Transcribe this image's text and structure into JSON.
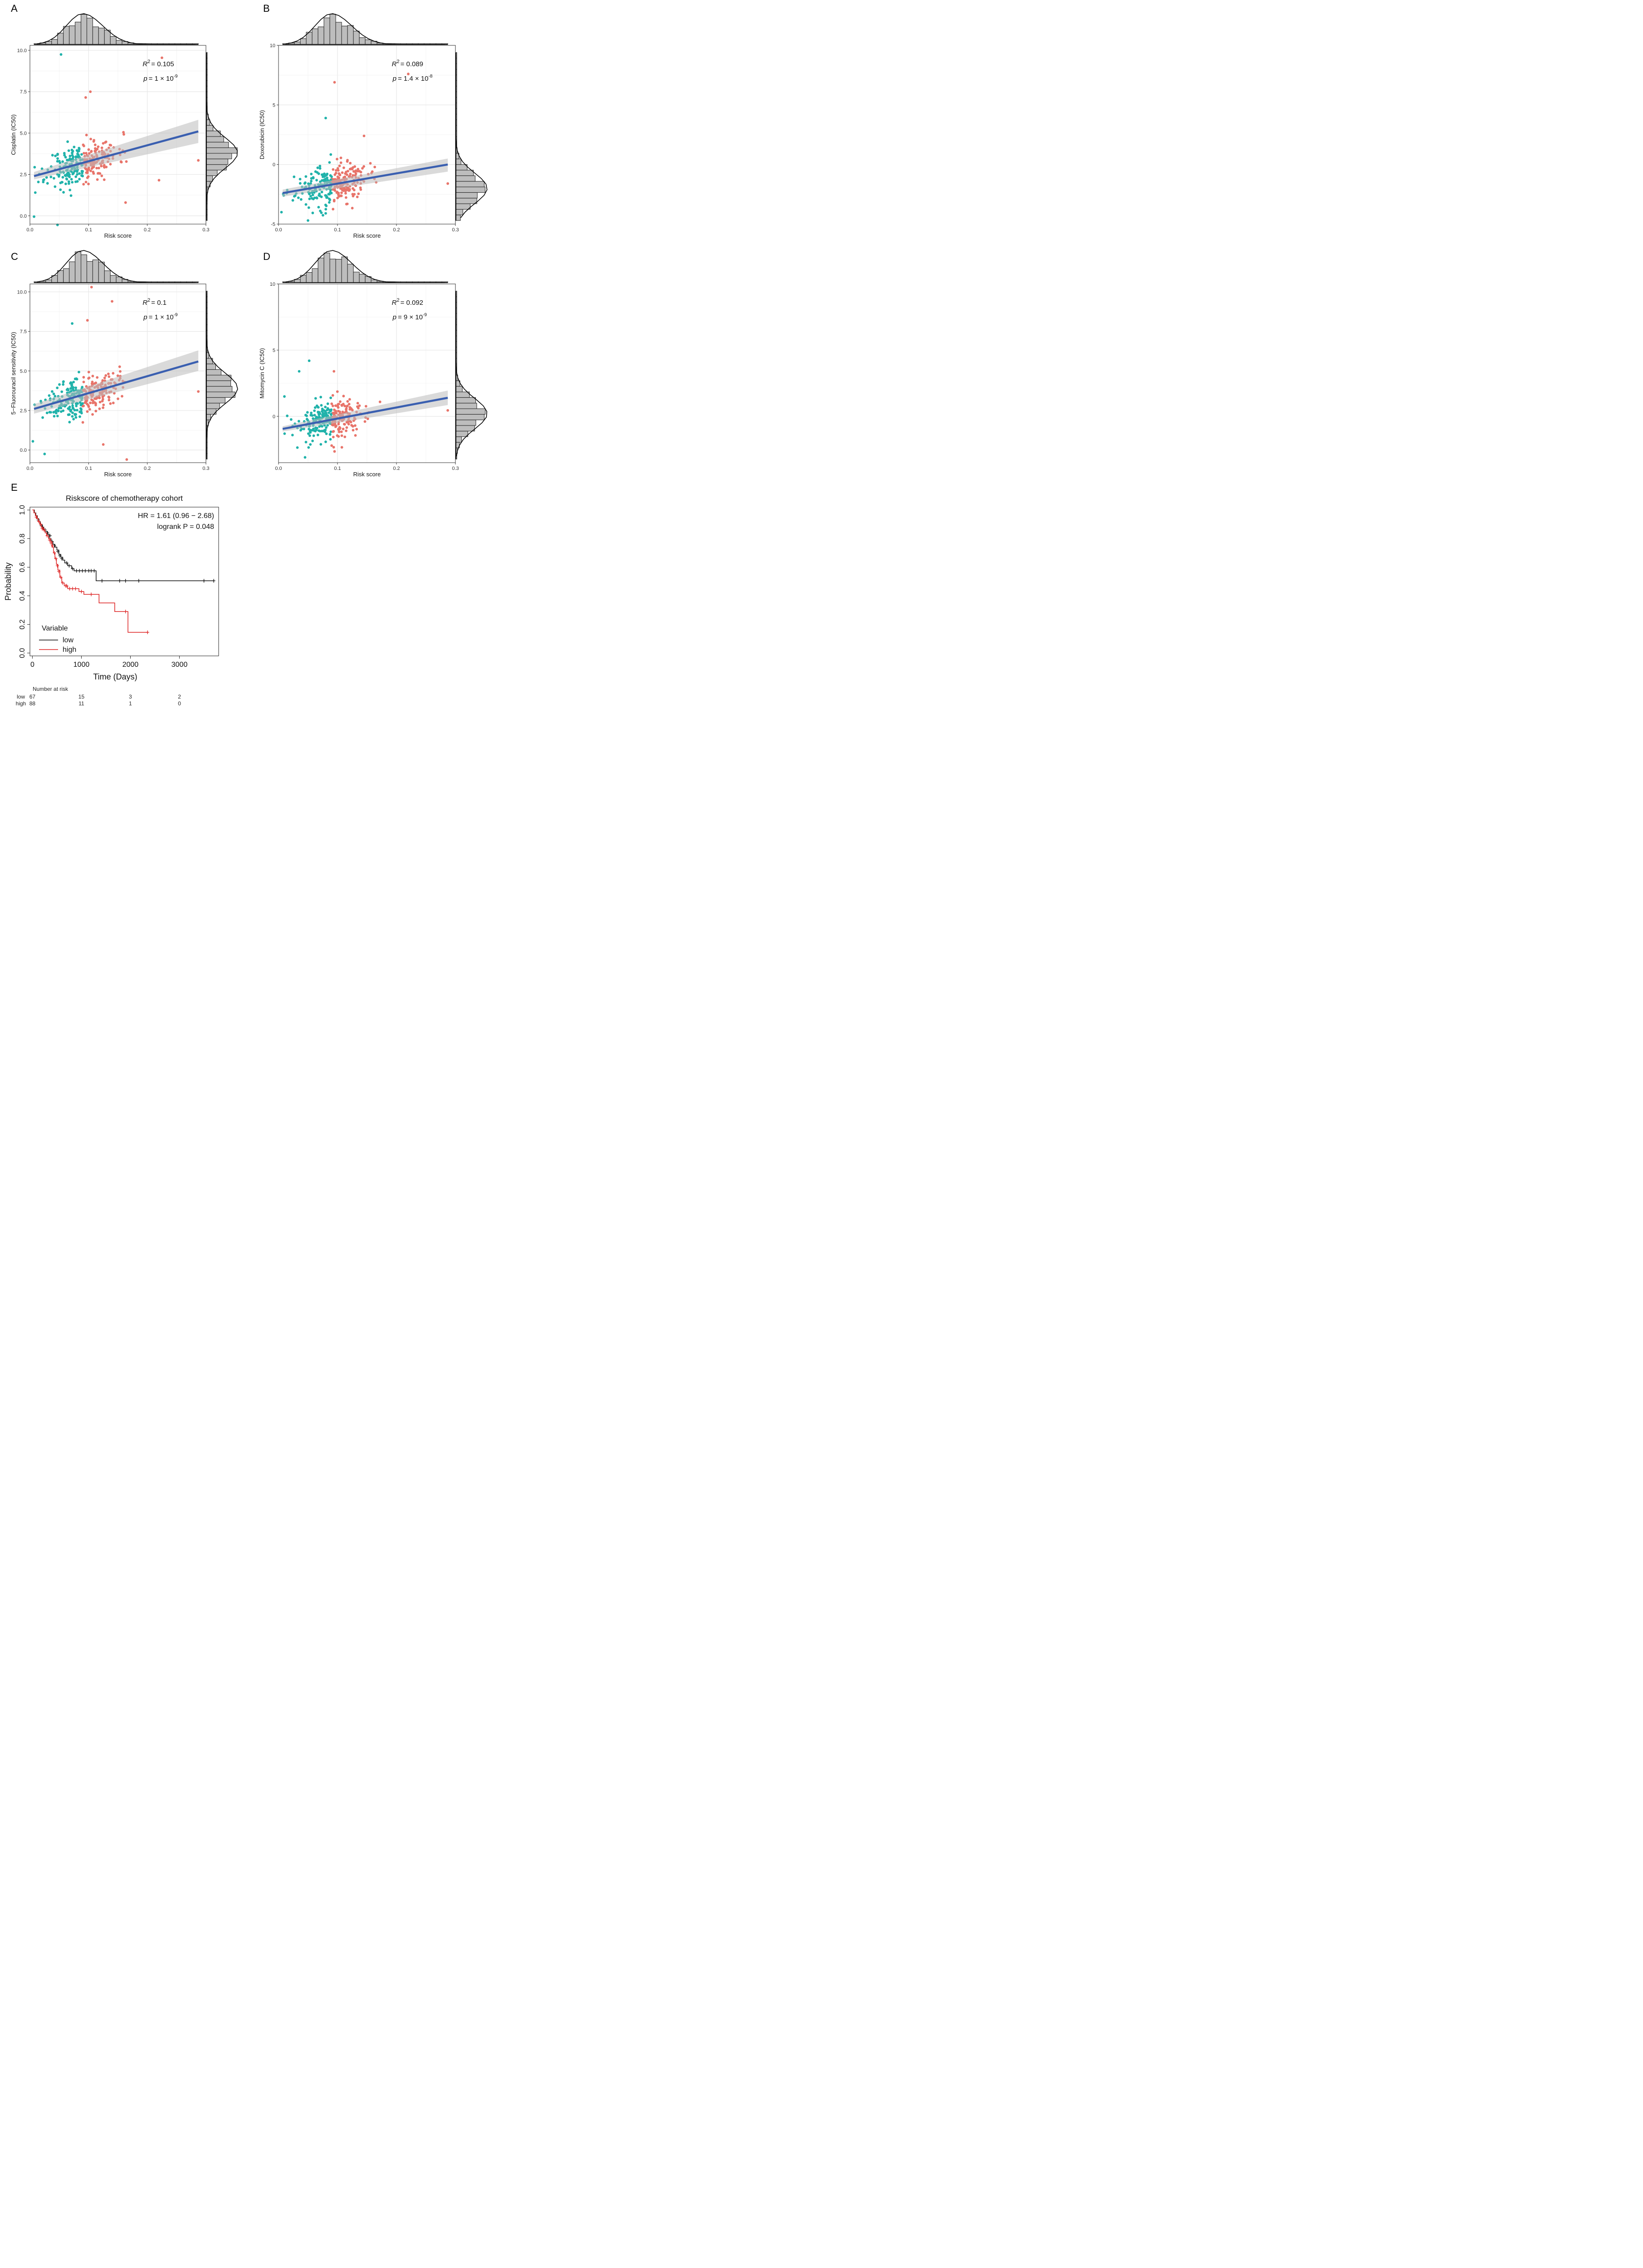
{
  "colors": {
    "low_point": "#20b2aa",
    "high_point": "#e8746a",
    "fit_line": "#3a5fb0",
    "ci_band": "#bbbbbb",
    "hist_fill": "#bdbdbd",
    "km_low": "#111111",
    "km_high": "#dd2222"
  },
  "panels": [
    {
      "letter": "A"
    },
    {
      "letter": "B"
    },
    {
      "letter": "C"
    },
    {
      "letter": "D"
    },
    {
      "letter": "E"
    }
  ],
  "chart_data": [
    {
      "type": "scatter",
      "panel": "A",
      "xlabel": "Risk score",
      "ylabel": "Cisplatin (IC50)",
      "xlim": [
        0,
        0.3
      ],
      "ylim": [
        -0.5,
        10.3
      ],
      "xticks": [
        "0.0",
        "0.1",
        "0.2",
        "0.3"
      ],
      "xtick_values": [
        0,
        0.1,
        0.2,
        0.3
      ],
      "yticks": [
        "0.0",
        "2.5",
        "5.0",
        "7.5",
        "10.0"
      ],
      "ytick_values": [
        0,
        2.5,
        5,
        7.5,
        10
      ],
      "r2_label": "R",
      "r2_sup": "2",
      "r2_value": "= 0.105",
      "p_label": "p",
      "p_value": "= 1 × 10",
      "p_exp": "-9",
      "fit": {
        "x": [
          0.007,
          0.287
        ],
        "y": [
          2.4,
          5.1
        ],
        "ci_low": [
          2.2,
          4.4
        ],
        "ci_high": [
          2.65,
          5.8
        ]
      },
      "hist_peak_x": 0.09,
      "hist_peak_y": 3.8,
      "seed": 11,
      "outliers": [
        [
          0.053,
          9.75
        ],
        [
          0.225,
          9.55
        ],
        [
          0.103,
          7.5
        ],
        [
          0.095,
          7.15
        ],
        [
          0.007,
          -0.05
        ],
        [
          0.047,
          -0.55
        ],
        [
          0.163,
          0.8
        ],
        [
          0.287,
          3.35
        ],
        [
          0.22,
          2.15
        ]
      ]
    },
    {
      "type": "scatter",
      "panel": "B",
      "xlabel": "Risk score",
      "ylabel": "Doxorubicin (IC50)",
      "xlim": [
        0,
        0.3
      ],
      "ylim": [
        -5,
        10
      ],
      "xticks": [
        "0.0",
        "0.1",
        "0.2",
        "0.3"
      ],
      "xtick_values": [
        0,
        0.1,
        0.2,
        0.3
      ],
      "yticks": [
        "-5",
        "0",
        "5",
        "10"
      ],
      "ytick_values": [
        -5,
        0,
        5,
        10
      ],
      "r2_label": "R",
      "r2_sup": "2",
      "r2_value": "= 0.089",
      "p_label": "p",
      "p_value": "= 1.4 × 10",
      "p_exp": "-8",
      "fit": {
        "x": [
          0.007,
          0.287
        ],
        "y": [
          -2.4,
          0.0
        ],
        "ci_low": [
          -2.7,
          -0.6
        ],
        "ci_high": [
          -2.1,
          0.5
        ]
      },
      "hist_peak_x": 0.09,
      "hist_peak_y": -2.0,
      "seed": 23,
      "outliers": [
        [
          0.095,
          6.9
        ],
        [
          0.22,
          7.6
        ],
        [
          0.08,
          3.9
        ],
        [
          0.145,
          2.4
        ],
        [
          0.287,
          -1.6
        ],
        [
          0.005,
          -4.0
        ],
        [
          0.05,
          -4.7
        ],
        [
          0.08,
          -4.1
        ]
      ]
    },
    {
      "type": "scatter",
      "panel": "C",
      "xlabel": "Risk score",
      "ylabel": "5−Fluorouracil sensitivity (IC50)",
      "xlim": [
        0,
        0.3
      ],
      "ylim": [
        -0.8,
        10.5
      ],
      "xticks": [
        "0.0",
        "0.1",
        "0.2",
        "0.3"
      ],
      "xtick_values": [
        0,
        0.1,
        0.2,
        0.3
      ],
      "yticks": [
        "0.0",
        "2.5",
        "5.0",
        "7.5",
        "10.0"
      ],
      "ytick_values": [
        0,
        2.5,
        5,
        7.5,
        10
      ],
      "r2_label": "R",
      "r2_sup": "2",
      "r2_value": "= 0.1",
      "p_label": "p",
      "p_value": "= 1 × 10",
      "p_exp": "-9",
      "fit": {
        "x": [
          0.007,
          0.287
        ],
        "y": [
          2.6,
          5.6
        ],
        "ci_low": [
          2.3,
          5.0
        ],
        "ci_high": [
          2.9,
          6.3
        ]
      },
      "hist_peak_x": 0.09,
      "hist_peak_y": 3.9,
      "seed": 37,
      "outliers": [
        [
          0.105,
          10.3
        ],
        [
          0.14,
          9.4
        ],
        [
          0.098,
          8.2
        ],
        [
          0.072,
          8.0
        ],
        [
          0.165,
          -0.6
        ],
        [
          0.025,
          -0.25
        ],
        [
          0.005,
          0.55
        ],
        [
          0.287,
          3.7
        ],
        [
          0.125,
          0.35
        ]
      ]
    },
    {
      "type": "scatter",
      "panel": "D",
      "xlabel": "Risk score",
      "ylabel": "Mitomycin C (IC50)",
      "xlim": [
        0,
        0.3
      ],
      "ylim": [
        -3.5,
        10
      ],
      "xticks": [
        "0.0",
        "0.1",
        "0.2",
        "0.3"
      ],
      "xtick_values": [
        0,
        0.1,
        0.2,
        0.3
      ],
      "yticks": [
        "0",
        "5",
        "10"
      ],
      "ytick_values": [
        0,
        5,
        10
      ],
      "r2_label": "R",
      "r2_sup": "2",
      "r2_value": "= 0.092",
      "p_label": "p",
      "p_value": "= 9 × 10",
      "p_exp": "-9",
      "fit": {
        "x": [
          0.007,
          0.287
        ],
        "y": [
          -0.95,
          1.4
        ],
        "ci_low": [
          -1.15,
          0.85
        ],
        "ci_high": [
          -0.75,
          1.95
        ]
      },
      "hist_peak_x": 0.09,
      "hist_peak_y": 0.2,
      "seed": 53,
      "outliers": [
        [
          0.052,
          4.2
        ],
        [
          0.035,
          3.4
        ],
        [
          0.094,
          3.4
        ],
        [
          0.287,
          0.45
        ],
        [
          0.01,
          1.5
        ],
        [
          0.045,
          -3.1
        ],
        [
          0.095,
          -2.65
        ]
      ]
    },
    {
      "type": "line",
      "panel": "E",
      "title": "Riskscore of chemotherapy cohort",
      "xlabel": "Time (Days)",
      "ylabel": "Probability",
      "xlim": [
        -50,
        3800
      ],
      "ylim": [
        -0.02,
        1.02
      ],
      "xticks": [
        "0",
        "1000",
        "2000",
        "3000"
      ],
      "xtick_values": [
        0,
        1000,
        2000,
        3000
      ],
      "yticks": [
        "0.0",
        "0.2",
        "0.4",
        "0.6",
        "0.8",
        "1.0"
      ],
      "ytick_values": [
        0,
        0.2,
        0.4,
        0.6,
        0.8,
        1.0
      ],
      "hr_text": "HR = 1.61 (0.96 − 2.68)",
      "logrank_text": "logrank P = 0.048",
      "legend_title": "Variable",
      "series": [
        {
          "name": "low",
          "steps": [
            [
              0,
              1.0
            ],
            [
              40,
              0.98
            ],
            [
              70,
              0.96
            ],
            [
              100,
              0.94
            ],
            [
              130,
              0.92
            ],
            [
              160,
              0.9
            ],
            [
              200,
              0.88
            ],
            [
              230,
              0.86
            ],
            [
              260,
              0.85
            ],
            [
              300,
              0.83
            ],
            [
              340,
              0.8
            ],
            [
              380,
              0.78
            ],
            [
              420,
              0.76
            ],
            [
              460,
              0.74
            ],
            [
              500,
              0.72
            ],
            [
              540,
              0.69
            ],
            [
              580,
              0.67
            ],
            [
              620,
              0.65
            ],
            [
              660,
              0.63
            ],
            [
              720,
              0.61
            ],
            [
              800,
              0.59
            ],
            [
              850,
              0.575
            ],
            [
              1300,
              0.505
            ],
            [
              3700,
              0.505
            ]
          ],
          "censor": [
            [
              120,
              0.93
            ],
            [
              180,
              0.89
            ],
            [
              210,
              0.88
            ],
            [
              260,
              0.86
            ],
            [
              310,
              0.84
            ],
            [
              360,
              0.82
            ],
            [
              400,
              0.78
            ],
            [
              450,
              0.75
            ],
            [
              520,
              0.71
            ],
            [
              560,
              0.68
            ],
            [
              600,
              0.66
            ],
            [
              700,
              0.63
            ],
            [
              750,
              0.61
            ],
            [
              820,
              0.59
            ],
            [
              900,
              0.575
            ],
            [
              960,
              0.575
            ],
            [
              1020,
              0.575
            ],
            [
              1080,
              0.575
            ],
            [
              1150,
              0.575
            ],
            [
              1200,
              0.575
            ],
            [
              1260,
              0.575
            ],
            [
              1420,
              0.505
            ],
            [
              1780,
              0.505
            ],
            [
              1900,
              0.505
            ],
            [
              2170,
              0.505
            ],
            [
              3500,
              0.505
            ],
            [
              3700,
              0.505
            ]
          ]
        },
        {
          "name": "high",
          "steps": [
            [
              0,
              1.0
            ],
            [
              30,
              0.98
            ],
            [
              60,
              0.96
            ],
            [
              90,
              0.94
            ],
            [
              120,
              0.92
            ],
            [
              150,
              0.9
            ],
            [
              180,
              0.88
            ],
            [
              220,
              0.86
            ],
            [
              260,
              0.84
            ],
            [
              290,
              0.82
            ],
            [
              330,
              0.8
            ],
            [
              370,
              0.78
            ],
            [
              400,
              0.74
            ],
            [
              430,
              0.7
            ],
            [
              460,
              0.66
            ],
            [
              490,
              0.62
            ],
            [
              520,
              0.58
            ],
            [
              560,
              0.53
            ],
            [
              600,
              0.49
            ],
            [
              650,
              0.47
            ],
            [
              720,
              0.45
            ],
            [
              950,
              0.43
            ],
            [
              1050,
              0.41
            ],
            [
              1360,
              0.35
            ],
            [
              1680,
              0.29
            ],
            [
              1950,
              0.145
            ],
            [
              2350,
              0.145
            ]
          ],
          "censor": [
            [
              80,
              0.95
            ],
            [
              130,
              0.92
            ],
            [
              170,
              0.9
            ],
            [
              200,
              0.87
            ],
            [
              240,
              0.86
            ],
            [
              300,
              0.82
            ],
            [
              350,
              0.79
            ],
            [
              380,
              0.77
            ],
            [
              410,
              0.75
            ],
            [
              450,
              0.7
            ],
            [
              480,
              0.66
            ],
            [
              510,
              0.61
            ],
            [
              540,
              0.57
            ],
            [
              580,
              0.53
            ],
            [
              620,
              0.49
            ],
            [
              680,
              0.47
            ],
            [
              700,
              0.47
            ],
            [
              760,
              0.45
            ],
            [
              820,
              0.45
            ],
            [
              880,
              0.45
            ],
            [
              1000,
              0.43
            ],
            [
              1200,
              0.41
            ],
            [
              1900,
              0.29
            ],
            [
              2350,
              0.145
            ]
          ]
        }
      ]
    }
  ],
  "risk_table": {
    "title": "Number at risk",
    "rows": [
      {
        "label": "low",
        "values": [
          "67",
          "15",
          "3",
          "2"
        ]
      },
      {
        "label": "high",
        "values": [
          "88",
          "11",
          "1",
          "0"
        ]
      }
    ]
  }
}
